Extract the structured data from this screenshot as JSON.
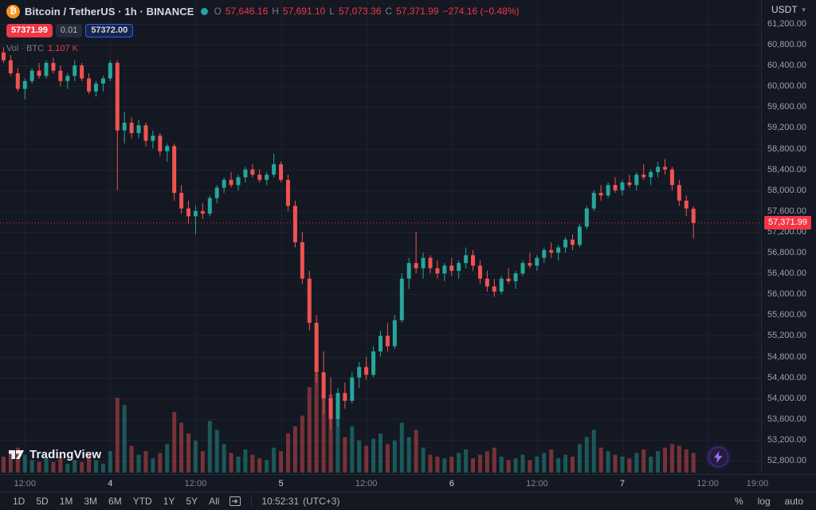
{
  "header": {
    "symbol_title": "Bitcoin / TetherUS · 1h · BINANCE",
    "ohlc": {
      "o_label": "O",
      "o": "57,646.16",
      "h_label": "H",
      "h": "57,691.10",
      "l_label": "L",
      "l": "57,073.36",
      "c_label": "C",
      "c": "57,371.99",
      "change": "−274.16 (−0.48%)"
    },
    "quote": {
      "sell": "57371.99",
      "spread": "0.01",
      "buy": "57372.00"
    },
    "volume_label": "Vol · BTC",
    "volume_value": "1.107 K",
    "currency": "USDT"
  },
  "watermark_text": "TradingView",
  "price_axis": {
    "min": 52800,
    "max": 61200,
    "step": 400,
    "last_price": "57,371.99",
    "ticks": [
      "61,200.00",
      "60,800.00",
      "60,400.00",
      "60,000.00",
      "59,600.00",
      "59,200.00",
      "58,800.00",
      "58,400.00",
      "58,000.00",
      "57,600.00",
      "57,200.00",
      "56,800.00",
      "56,400.00",
      "56,000.00",
      "55,600.00",
      "55,200.00",
      "54,800.00",
      "54,400.00",
      "54,000.00",
      "53,600.00",
      "53,200.00",
      "52,800.00"
    ]
  },
  "time_axis": {
    "labels": [
      {
        "text": "12:00",
        "slot": 3,
        "major": false
      },
      {
        "text": "4",
        "slot": 15,
        "major": true
      },
      {
        "text": "12:00",
        "slot": 27,
        "major": false
      },
      {
        "text": "5",
        "slot": 39,
        "major": true
      },
      {
        "text": "12:00",
        "slot": 51,
        "major": false
      },
      {
        "text": "6",
        "slot": 63,
        "major": true
      },
      {
        "text": "12:00",
        "slot": 75,
        "major": false
      },
      {
        "text": "7",
        "slot": 87,
        "major": true
      },
      {
        "text": "12:00",
        "slot": 99,
        "major": false
      },
      {
        "text": "19:00",
        "slot": 106,
        "major": false
      }
    ]
  },
  "footer": {
    "ranges": [
      "1D",
      "5D",
      "1M",
      "3M",
      "6M",
      "YTD",
      "1Y",
      "5Y",
      "All"
    ],
    "clock": "10:52:31",
    "timezone": "(UTC+3)",
    "scales": [
      "%",
      "log",
      "auto"
    ]
  },
  "chart_data": {
    "type": "candlestick",
    "pair": "Bitcoin / TetherUS",
    "interval": "1h",
    "exchange": "BINANCE",
    "price_range": [
      52800,
      61200
    ],
    "last_close": 57371.99,
    "up_color": "#26a69a",
    "down_color": "#f23645",
    "candle_down_body": "#ef5350",
    "grid_color": "#1c2230",
    "volume_max_k": 5.6,
    "volume_units": "K BTC",
    "candles_format": [
      "open",
      "high",
      "low",
      "close",
      "volume_k"
    ],
    "candles": [
      [
        60650,
        60750,
        60450,
        60500,
        0.9
      ],
      [
        60500,
        60600,
        60200,
        60250,
        1.1
      ],
      [
        60250,
        60350,
        59900,
        59950,
        1.4
      ],
      [
        59950,
        60150,
        59750,
        60100,
        1.0
      ],
      [
        60100,
        60350,
        60050,
        60300,
        0.7
      ],
      [
        60300,
        60450,
        60150,
        60200,
        0.6
      ],
      [
        60200,
        60500,
        60150,
        60450,
        0.8
      ],
      [
        60450,
        60550,
        60250,
        60300,
        0.6
      ],
      [
        60300,
        60400,
        60000,
        60100,
        0.9
      ],
      [
        60100,
        60250,
        59950,
        60200,
        0.5
      ],
      [
        60200,
        60500,
        60100,
        60400,
        0.7
      ],
      [
        60400,
        60450,
        60100,
        60150,
        0.6
      ],
      [
        60150,
        60250,
        59850,
        59900,
        1.0
      ],
      [
        59900,
        60100,
        59800,
        60050,
        0.7
      ],
      [
        60050,
        60200,
        59900,
        60150,
        0.5
      ],
      [
        60150,
        60500,
        60100,
        60450,
        1.2
      ],
      [
        60450,
        60500,
        58000,
        59150,
        4.2
      ],
      [
        59150,
        59500,
        58900,
        59300,
        3.8
      ],
      [
        59300,
        59400,
        59000,
        59100,
        1.5
      ],
      [
        59100,
        59350,
        59000,
        59250,
        1.0
      ],
      [
        59250,
        59300,
        58850,
        58950,
        1.2
      ],
      [
        58950,
        59150,
        58800,
        59050,
        0.8
      ],
      [
        59050,
        59100,
        58650,
        58750,
        1.1
      ],
      [
        58750,
        58900,
        58550,
        58850,
        1.6
      ],
      [
        58850,
        58900,
        57800,
        57950,
        3.4
      ],
      [
        57950,
        58100,
        57550,
        57650,
        2.8
      ],
      [
        57650,
        57800,
        57350,
        57500,
        2.2
      ],
      [
        57500,
        57700,
        57150,
        57600,
        1.8
      ],
      [
        57600,
        57750,
        57450,
        57550,
        1.2
      ],
      [
        57550,
        57900,
        57500,
        57850,
        2.9
      ],
      [
        57850,
        58100,
        57750,
        58050,
        2.4
      ],
      [
        58050,
        58250,
        57950,
        58200,
        1.6
      ],
      [
        58200,
        58350,
        58050,
        58100,
        1.1
      ],
      [
        58100,
        58300,
        58000,
        58250,
        0.9
      ],
      [
        58250,
        58450,
        58150,
        58400,
        1.3
      ],
      [
        58400,
        58500,
        58250,
        58300,
        1.0
      ],
      [
        58300,
        58400,
        58150,
        58200,
        0.8
      ],
      [
        58200,
        58350,
        58100,
        58300,
        0.7
      ],
      [
        58300,
        58700,
        58250,
        58500,
        1.4
      ],
      [
        58500,
        58550,
        58150,
        58200,
        1.2
      ],
      [
        58200,
        58300,
        57600,
        57700,
        2.2
      ],
      [
        57700,
        57800,
        56900,
        57000,
        2.6
      ],
      [
        57000,
        57200,
        56200,
        56300,
        3.2
      ],
      [
        56300,
        56450,
        55300,
        55450,
        4.8
      ],
      [
        55450,
        55600,
        54300,
        54500,
        5.6
      ],
      [
        54500,
        54900,
        53700,
        54000,
        5.0
      ],
      [
        54000,
        54400,
        53400,
        53600,
        4.4
      ],
      [
        53600,
        54200,
        53450,
        54100,
        3.0
      ],
      [
        54100,
        54300,
        53800,
        53950,
        2.0
      ],
      [
        53950,
        54500,
        53900,
        54400,
        2.6
      ],
      [
        54400,
        54700,
        54200,
        54600,
        1.8
      ],
      [
        54600,
        54800,
        54350,
        54450,
        1.5
      ],
      [
        54450,
        55000,
        54400,
        54900,
        1.9
      ],
      [
        54900,
        55300,
        54800,
        55200,
        2.2
      ],
      [
        55200,
        55450,
        54900,
        55000,
        1.6
      ],
      [
        55000,
        55600,
        54950,
        55500,
        1.8
      ],
      [
        55500,
        56400,
        55450,
        56300,
        2.8
      ],
      [
        56300,
        56700,
        56100,
        56600,
        2.0
      ],
      [
        56600,
        57200,
        56400,
        56500,
        2.4
      ],
      [
        56500,
        56800,
        56300,
        56700,
        1.4
      ],
      [
        56700,
        56750,
        56400,
        56500,
        1.0
      ],
      [
        56500,
        56650,
        56300,
        56400,
        0.9
      ],
      [
        56400,
        56600,
        56250,
        56550,
        0.8
      ],
      [
        56550,
        56700,
        56350,
        56450,
        0.9
      ],
      [
        56450,
        56650,
        56300,
        56600,
        1.1
      ],
      [
        56600,
        56900,
        56500,
        56750,
        1.3
      ],
      [
        56750,
        56850,
        56450,
        56550,
        0.8
      ],
      [
        56550,
        56650,
        56200,
        56300,
        1.0
      ],
      [
        56300,
        56450,
        56050,
        56150,
        1.2
      ],
      [
        56150,
        56300,
        55950,
        56050,
        1.4
      ],
      [
        56050,
        56350,
        56000,
        56300,
        0.9
      ],
      [
        56300,
        56500,
        56200,
        56250,
        0.7
      ],
      [
        56250,
        56450,
        56100,
        56400,
        0.8
      ],
      [
        56400,
        56650,
        56350,
        56600,
        1.0
      ],
      [
        56600,
        56800,
        56500,
        56550,
        0.7
      ],
      [
        56550,
        56750,
        56450,
        56700,
        0.9
      ],
      [
        56700,
        56900,
        56600,
        56850,
        1.1
      ],
      [
        56850,
        57000,
        56700,
        56800,
        1.3
      ],
      [
        56800,
        56950,
        56650,
        56900,
        0.8
      ],
      [
        56900,
        57100,
        56800,
        57050,
        1.0
      ],
      [
        57050,
        57150,
        56850,
        56950,
        0.9
      ],
      [
        56950,
        57350,
        56900,
        57300,
        1.6
      ],
      [
        57300,
        57700,
        57250,
        57650,
        2.0
      ],
      [
        57650,
        58000,
        57600,
        57950,
        2.4
      ],
      [
        57950,
        58100,
        57800,
        57900,
        1.4
      ],
      [
        57900,
        58150,
        57850,
        58100,
        1.2
      ],
      [
        58100,
        58250,
        57950,
        58000,
        1.0
      ],
      [
        58000,
        58200,
        57900,
        58150,
        0.9
      ],
      [
        58150,
        58300,
        58050,
        58100,
        0.8
      ],
      [
        58100,
        58350,
        58000,
        58300,
        1.1
      ],
      [
        58300,
        58500,
        58200,
        58250,
        1.3
      ],
      [
        58250,
        58400,
        58100,
        58350,
        0.9
      ],
      [
        58350,
        58550,
        58250,
        58450,
        1.2
      ],
      [
        58450,
        58600,
        58300,
        58400,
        1.4
      ],
      [
        58400,
        58450,
        58000,
        58100,
        1.6
      ],
      [
        58100,
        58200,
        57700,
        57800,
        1.5
      ],
      [
        57800,
        57900,
        57500,
        57650,
        1.3
      ],
      [
        57646.16,
        57691.1,
        57073.36,
        57371.99,
        1.107
      ]
    ]
  }
}
